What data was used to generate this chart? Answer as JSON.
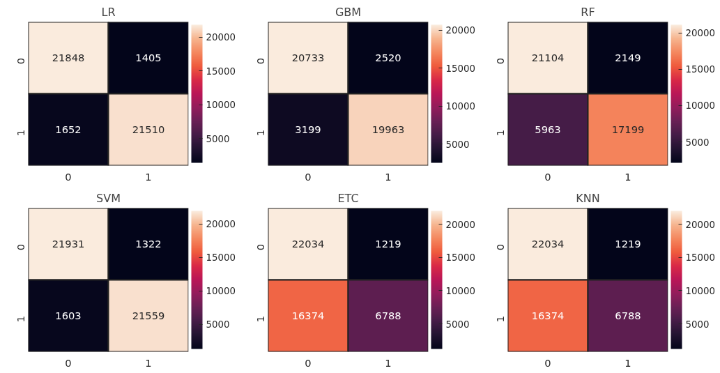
{
  "chart_data": [
    {
      "type": "heatmap",
      "title": "LR",
      "categories": [
        "0",
        "1"
      ],
      "y_categories": [
        "0",
        "1"
      ],
      "cells": [
        [
          21848,
          1405
        ],
        [
          1652,
          21510
        ]
      ],
      "clim": [
        1405,
        21848
      ],
      "cticks": [
        5000,
        10000,
        15000,
        20000
      ],
      "data_labels": true
    },
    {
      "type": "heatmap",
      "title": "GBM",
      "categories": [
        "0",
        "1"
      ],
      "y_categories": [
        "0",
        "1"
      ],
      "cells": [
        [
          20733,
          2520
        ],
        [
          3199,
          19963
        ]
      ],
      "clim": [
        2520,
        20733
      ],
      "cticks": [
        5000,
        10000,
        15000,
        20000
      ],
      "data_labels": true
    },
    {
      "type": "heatmap",
      "title": "RF",
      "categories": [
        "0",
        "1"
      ],
      "y_categories": [
        "0",
        "1"
      ],
      "cells": [
        [
          21104,
          2149
        ],
        [
          5963,
          17199
        ]
      ],
      "clim": [
        2149,
        21104
      ],
      "cticks": [
        5000,
        10000,
        15000,
        20000
      ],
      "data_labels": true
    },
    {
      "type": "heatmap",
      "title": "SVM",
      "categories": [
        "0",
        "1"
      ],
      "y_categories": [
        "0",
        "1"
      ],
      "cells": [
        [
          21931,
          1322
        ],
        [
          1603,
          21559
        ]
      ],
      "clim": [
        1322,
        21931
      ],
      "cticks": [
        5000,
        10000,
        15000,
        20000
      ],
      "data_labels": true
    },
    {
      "type": "heatmap",
      "title": "ETC",
      "categories": [
        "0",
        "1"
      ],
      "y_categories": [
        "0",
        "1"
      ],
      "cells": [
        [
          22034,
          1219
        ],
        [
          16374,
          6788
        ]
      ],
      "clim": [
        1219,
        22034
      ],
      "cticks": [
        5000,
        10000,
        15000,
        20000
      ],
      "data_labels": true
    },
    {
      "type": "heatmap",
      "title": "KNN",
      "categories": [
        "0",
        "1"
      ],
      "y_categories": [
        "0",
        "1"
      ],
      "cells": [
        [
          22034,
          1219
        ],
        [
          16374,
          6788
        ]
      ],
      "clim": [
        1219,
        22034
      ],
      "cticks": [
        5000,
        10000,
        15000,
        20000
      ],
      "data_labels": true
    }
  ]
}
